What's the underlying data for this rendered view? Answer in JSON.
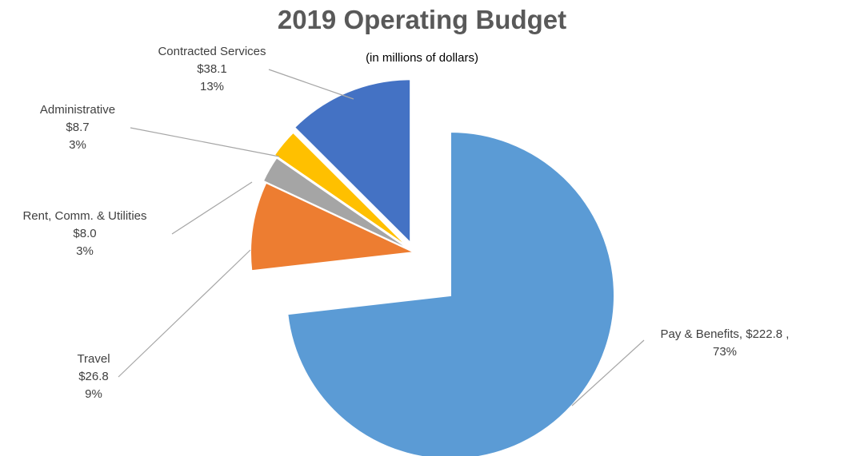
{
  "chart_data": {
    "type": "pie",
    "title": "2019 Operating Budget",
    "subtitle": "(in millions of dollars)",
    "exploded": true,
    "slices": [
      {
        "label": "Pay & Benefits",
        "value": 222.8,
        "value_text": "$222.8",
        "percent_text": "73%",
        "color": "#5B9BD5"
      },
      {
        "label": "Travel",
        "value": 26.8,
        "value_text": "$26.8",
        "percent_text": "9%",
        "color": "#ED7D31"
      },
      {
        "label": "Rent, Comm. & Utilities",
        "value": 8.0,
        "value_text": "$8.0",
        "percent_text": "3%",
        "color": "#A5A5A5"
      },
      {
        "label": "Administrative",
        "value": 8.7,
        "value_text": "$8.7",
        "percent_text": "3%",
        "color": "#FFC000"
      },
      {
        "label": "Contracted Services",
        "value": 38.1,
        "value_text": "$38.1",
        "percent_text": "13%",
        "color": "#4472C4"
      }
    ]
  }
}
